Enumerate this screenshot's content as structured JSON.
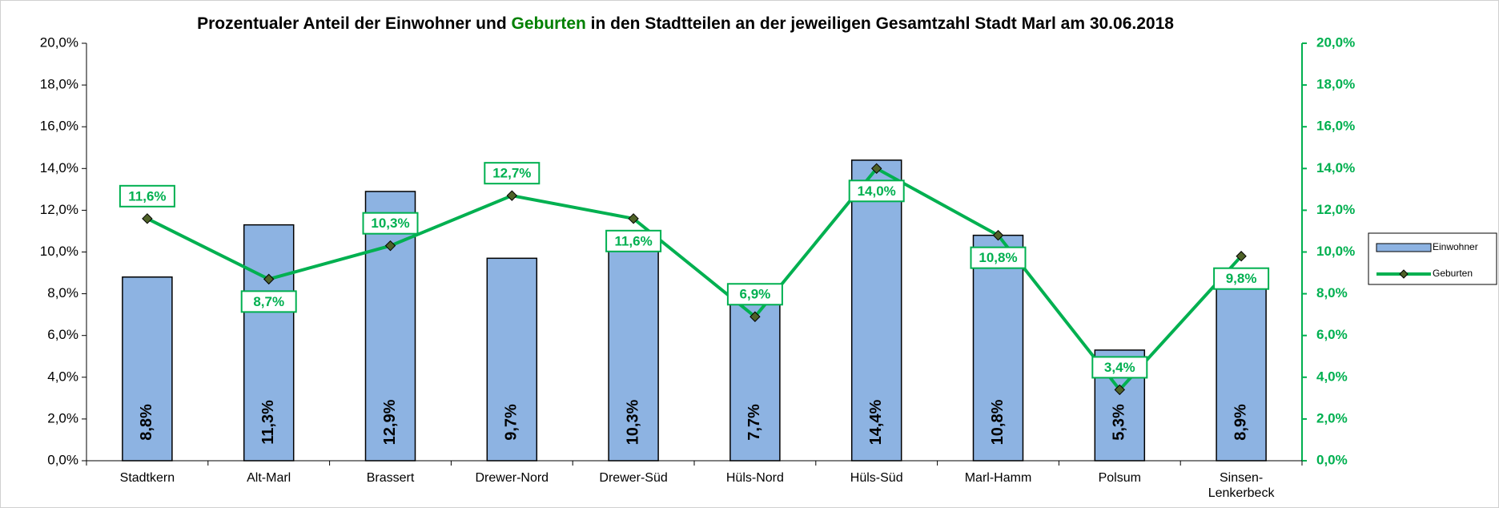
{
  "chart_data": {
    "type": "bar_line",
    "title": [
      "Prozentualer Anteil der Einwohner und ",
      "Geburten",
      " in den Stadtteilen an der jeweiligen Gesamtzahl Stadt Marl am 30.06.2018"
    ],
    "categories": [
      "Stadtkern",
      "Alt-Marl",
      "Brassert",
      "Drewer-Nord",
      "Drewer-Süd",
      "Hüls-Nord",
      "Hüls-Süd",
      "Marl-Hamm",
      "Polsum",
      "Sinsen-Lenkerbeck"
    ],
    "series": [
      {
        "name": "Einwohner",
        "type": "bar",
        "color": "#8db3e2",
        "axis": "y",
        "values": [
          8.8,
          11.3,
          12.9,
          9.7,
          10.3,
          7.7,
          14.4,
          10.8,
          5.3,
          8.9
        ],
        "value_labels": [
          "8,8%",
          "11,3%",
          "12,9%",
          "9,7%",
          "10,3%",
          "7,7%",
          "14,4%",
          "10,8%",
          "5,3%",
          "8,9%"
        ]
      },
      {
        "name": "Geburten",
        "type": "line",
        "color": "#00b050",
        "axis": "y2",
        "values": [
          11.6,
          8.7,
          10.3,
          12.7,
          11.6,
          6.9,
          14.0,
          10.8,
          3.4,
          9.8
        ],
        "value_labels": [
          "11,6%",
          "8,7%",
          "10,3%",
          "12,7%",
          "11,6%",
          "6,9%",
          "14,0%",
          "10,8%",
          "3,4%",
          "9,8%"
        ]
      }
    ],
    "ylim": [
      0,
      20
    ],
    "yticks": [
      {
        "value": 0,
        "label": "0,0%"
      },
      {
        "value": 2,
        "label": "2,0%"
      },
      {
        "value": 4,
        "label": "4,0%"
      },
      {
        "value": 6,
        "label": "6,0%"
      },
      {
        "value": 8,
        "label": "8,0%"
      },
      {
        "value": 10,
        "label": "10,0%"
      },
      {
        "value": 12,
        "label": "12,0%"
      },
      {
        "value": 14,
        "label": "14,0%"
      },
      {
        "value": 16,
        "label": "16,0%"
      },
      {
        "value": 18,
        "label": "18,0%"
      },
      {
        "value": 20,
        "label": "20,0%"
      }
    ],
    "y2lim": [
      0,
      20
    ],
    "y2ticks": [
      {
        "value": 0,
        "label": "0,0%"
      },
      {
        "value": 2,
        "label": "2,0%"
      },
      {
        "value": 4,
        "label": "4,0%"
      },
      {
        "value": 6,
        "label": "6,0%"
      },
      {
        "value": 8,
        "label": "8,0%"
      },
      {
        "value": 10,
        "label": "10,0%"
      },
      {
        "value": 12,
        "label": "12,0%"
      },
      {
        "value": 14,
        "label": "14,0%"
      },
      {
        "value": 16,
        "label": "16,0%"
      },
      {
        "value": 18,
        "label": "18,0%"
      },
      {
        "value": 20,
        "label": "20,0%"
      }
    ],
    "grid": false,
    "legend": "right"
  }
}
